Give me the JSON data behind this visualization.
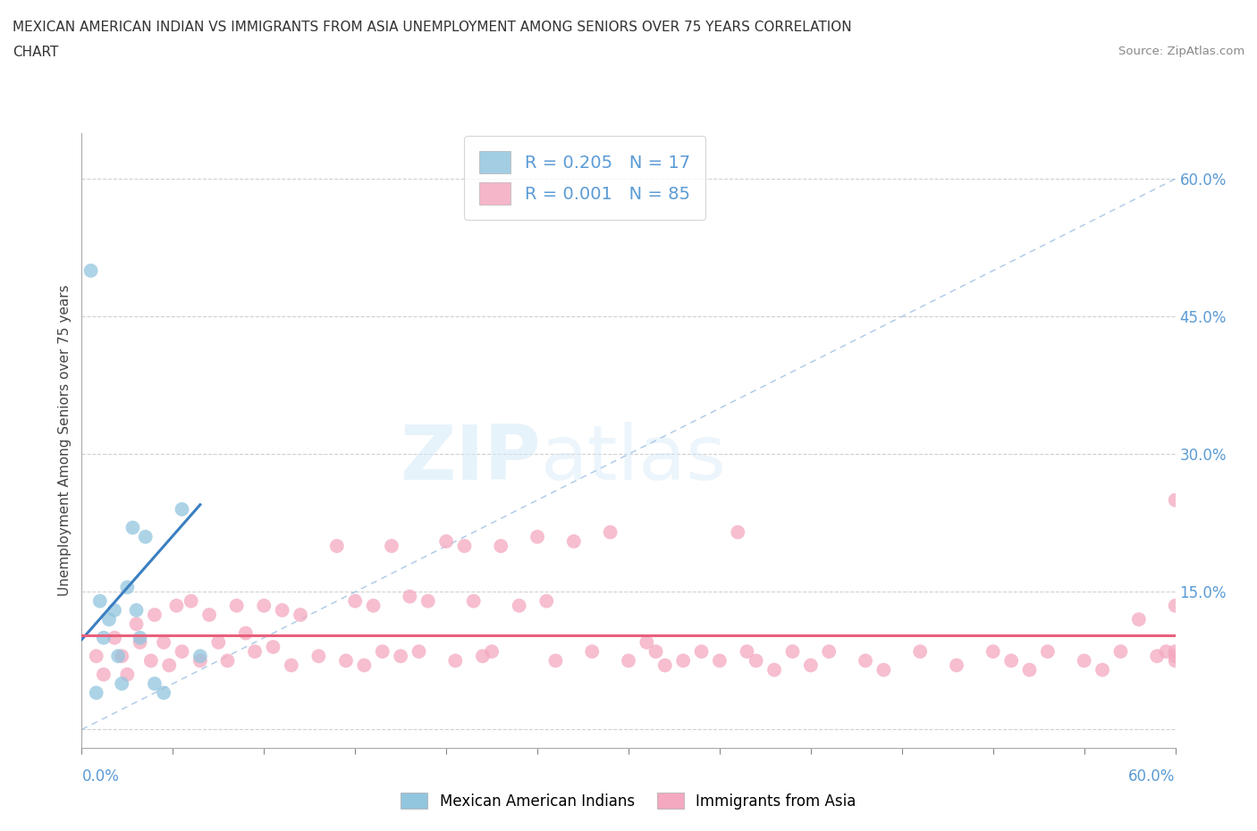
{
  "title_line1": "MEXICAN AMERICAN INDIAN VS IMMIGRANTS FROM ASIA UNEMPLOYMENT AMONG SENIORS OVER 75 YEARS CORRELATION",
  "title_line2": "CHART",
  "source": "Source: ZipAtlas.com",
  "ylabel": "Unemployment Among Seniors over 75 years",
  "xlim": [
    0.0,
    0.6
  ],
  "ylim": [
    -0.02,
    0.65
  ],
  "blue_R": 0.205,
  "blue_N": 17,
  "pink_R": 0.001,
  "pink_N": 85,
  "legend_label_blue": "Mexican American Indians",
  "legend_label_pink": "Immigrants from Asia",
  "blue_color": "#92c5de",
  "pink_color": "#f4a9c0",
  "blue_line_color": "#3a7fc1",
  "pink_line_color": "#e8607a",
  "ref_line_color": "#aac8e8",
  "watermark_zip": "ZIP",
  "watermark_atlas": "atlas",
  "tick_label_color": "#5b9bd5",
  "blue_points_x": [
    0.005,
    0.008,
    0.01,
    0.012,
    0.015,
    0.018,
    0.02,
    0.022,
    0.025,
    0.028,
    0.03,
    0.032,
    0.035,
    0.04,
    0.045,
    0.055,
    0.065
  ],
  "blue_points_y": [
    0.5,
    0.04,
    0.14,
    0.1,
    0.12,
    0.13,
    0.08,
    0.05,
    0.155,
    0.22,
    0.13,
    0.1,
    0.21,
    0.05,
    0.04,
    0.24,
    0.08
  ],
  "blue_line_x0": 0.0,
  "blue_line_y0": 0.098,
  "blue_line_x1": 0.065,
  "blue_line_y1": 0.245,
  "pink_line_y": 0.103,
  "pink_points_x": [
    0.008,
    0.012,
    0.018,
    0.022,
    0.025,
    0.03,
    0.032,
    0.038,
    0.04,
    0.045,
    0.048,
    0.052,
    0.055,
    0.06,
    0.065,
    0.07,
    0.075,
    0.08,
    0.085,
    0.09,
    0.095,
    0.1,
    0.105,
    0.11,
    0.115,
    0.12,
    0.13,
    0.14,
    0.145,
    0.15,
    0.155,
    0.16,
    0.165,
    0.17,
    0.175,
    0.18,
    0.185,
    0.19,
    0.2,
    0.205,
    0.21,
    0.215,
    0.22,
    0.225,
    0.23,
    0.24,
    0.25,
    0.255,
    0.26,
    0.27,
    0.28,
    0.29,
    0.3,
    0.31,
    0.315,
    0.32,
    0.33,
    0.34,
    0.35,
    0.36,
    0.365,
    0.37,
    0.38,
    0.39,
    0.4,
    0.41,
    0.43,
    0.44,
    0.46,
    0.48,
    0.5,
    0.51,
    0.52,
    0.53,
    0.55,
    0.56,
    0.57,
    0.58,
    0.59,
    0.595,
    0.6,
    0.6,
    0.6,
    0.6,
    0.6
  ],
  "pink_points_y": [
    0.08,
    0.06,
    0.1,
    0.08,
    0.06,
    0.115,
    0.095,
    0.075,
    0.125,
    0.095,
    0.07,
    0.135,
    0.085,
    0.14,
    0.075,
    0.125,
    0.095,
    0.075,
    0.135,
    0.105,
    0.085,
    0.135,
    0.09,
    0.13,
    0.07,
    0.125,
    0.08,
    0.2,
    0.075,
    0.14,
    0.07,
    0.135,
    0.085,
    0.2,
    0.08,
    0.145,
    0.085,
    0.14,
    0.205,
    0.075,
    0.2,
    0.14,
    0.08,
    0.085,
    0.2,
    0.135,
    0.21,
    0.14,
    0.075,
    0.205,
    0.085,
    0.215,
    0.075,
    0.095,
    0.085,
    0.07,
    0.075,
    0.085,
    0.075,
    0.215,
    0.085,
    0.075,
    0.065,
    0.085,
    0.07,
    0.085,
    0.075,
    0.065,
    0.085,
    0.07,
    0.085,
    0.075,
    0.065,
    0.085,
    0.075,
    0.065,
    0.085,
    0.12,
    0.08,
    0.085,
    0.08,
    0.135,
    0.075,
    0.085,
    0.25
  ]
}
